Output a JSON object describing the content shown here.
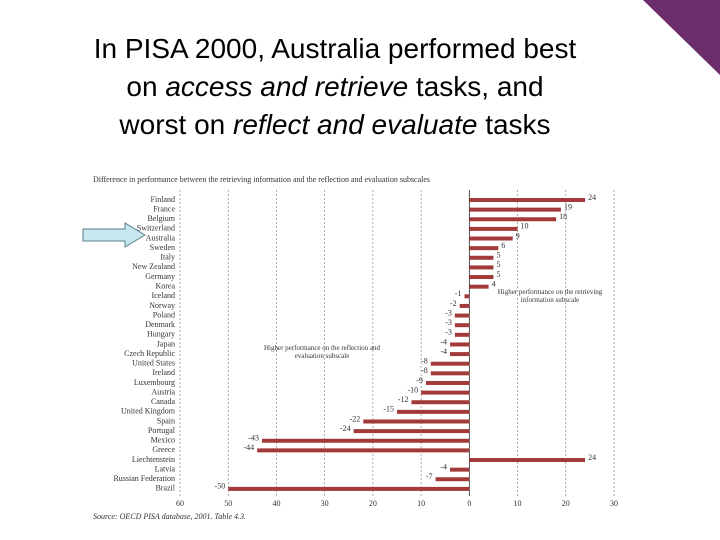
{
  "slide": {
    "title_lines": [
      [
        {
          "text": "In PISA 2000, Australia performed best",
          "italic": false
        }
      ],
      [
        {
          "text": "on ",
          "italic": false
        },
        {
          "text": "access and retrieve",
          "italic": true
        },
        {
          "text": " tasks, and",
          "italic": false
        }
      ],
      [
        {
          "text": "worst on ",
          "italic": false
        },
        {
          "text": "reflect and evaluate",
          "italic": true
        },
        {
          "text": " tasks",
          "italic": false
        }
      ]
    ]
  },
  "chart_data": {
    "type": "hbar",
    "title": "Difference in performance between the retrieving information and the reflection and evaluation subscales",
    "categories": [
      "Finland",
      "France",
      "Belgium",
      "Switzerland",
      "Australia",
      "Sweden",
      "Italy",
      "New Zealand",
      "Germany",
      "Korea",
      "Iceland",
      "Norway",
      "Poland",
      "Denmark",
      "Hungary",
      "Japan",
      "Czech Republic",
      "United States",
      "Ireland",
      "Luxembourg",
      "Austria",
      "Canada",
      "United Kingdom",
      "Spain",
      "Portugal",
      "Mexico",
      "Greece",
      "Liechtenstein",
      "Latvia",
      "Russian Federation",
      "Brazil"
    ],
    "values": [
      24,
      19,
      18,
      10,
      9,
      6,
      5,
      5,
      5,
      4,
      -1,
      -2,
      -3,
      -3,
      -3,
      -4,
      -4,
      -8,
      -8,
      -9,
      -10,
      -12,
      -15,
      -22,
      -24,
      -43,
      -44,
      24,
      -4,
      -7,
      -50
    ],
    "color": "#a33a3a",
    "xlim": [
      -60,
      30
    ],
    "xticks": [
      {
        "value": -60,
        "label": "60"
      },
      {
        "value": -50,
        "label": "50"
      },
      {
        "value": -40,
        "label": "40"
      },
      {
        "value": -30,
        "label": "30"
      },
      {
        "value": -20,
        "label": "20"
      },
      {
        "value": -10,
        "label": "10"
      },
      0,
      10,
      20,
      30
    ],
    "grid": true,
    "annotations": [
      "Higher performance on the retrieving information subscale",
      "Higher performance on the reflection and evaluation subscale"
    ],
    "source": "Source: OECD PISA database, 2001. Table 4.3."
  }
}
